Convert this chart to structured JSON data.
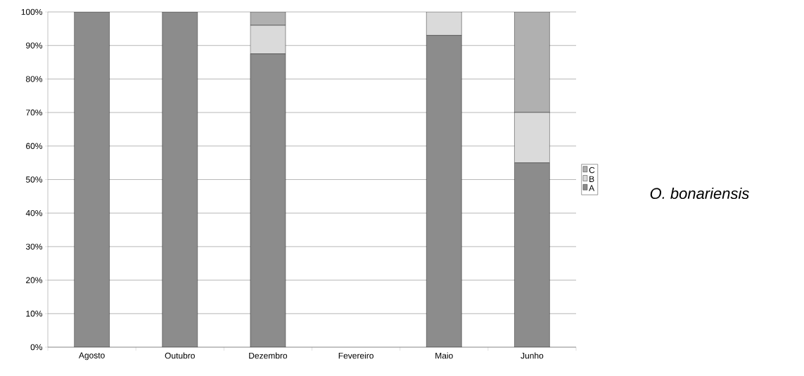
{
  "chart_data": {
    "type": "bar",
    "stacked": true,
    "title": "O. bonariensis",
    "categories": [
      "Agosto",
      "Outubro",
      "Dezembro",
      "Fevereiro",
      "Maio",
      "Junho"
    ],
    "series": [
      {
        "name": "A",
        "color": "#8c8c8c",
        "values": [
          100,
          100,
          87.5,
          null,
          93,
          55
        ]
      },
      {
        "name": "B",
        "color": "#dadada",
        "values": [
          0,
          0,
          8.5,
          null,
          7,
          15
        ]
      },
      {
        "name": "C",
        "color": "#b0b0b0",
        "values": [
          0,
          0,
          4,
          null,
          0,
          30
        ]
      }
    ],
    "ylim": [
      0,
      100
    ],
    "yticks": [
      {
        "value": 0,
        "label": "0%"
      },
      {
        "value": 10,
        "label": "10%"
      },
      {
        "value": 20,
        "label": "20%"
      },
      {
        "value": 30,
        "label": "30%"
      },
      {
        "value": 40,
        "label": "40%"
      },
      {
        "value": 50,
        "label": "50%"
      },
      {
        "value": 60,
        "label": "60%"
      },
      {
        "value": 70,
        "label": "70%"
      },
      {
        "value": 80,
        "label": "80%"
      },
      {
        "value": 90,
        "label": "90%"
      },
      {
        "value": 100,
        "label": "100%"
      }
    ],
    "grid": "y",
    "legend": "right"
  }
}
